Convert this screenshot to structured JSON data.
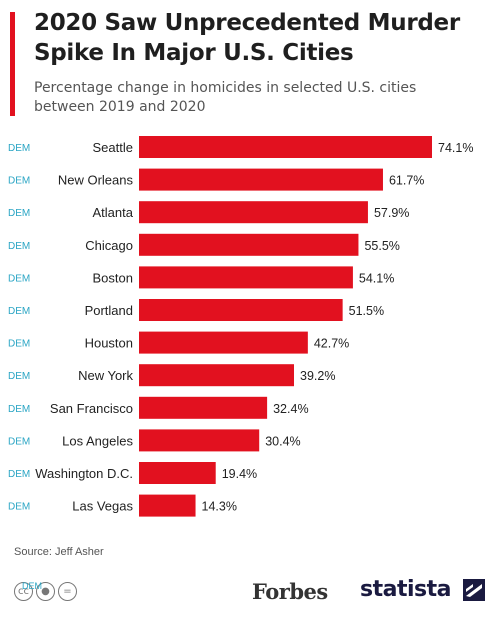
{
  "header": {
    "title": "2020 Saw Unprecedented Murder Spike In Major U.S. Cities",
    "subtitle": "Percentage change in homicides in selected U.S. cities between 2019 and 2020"
  },
  "chart_data": {
    "type": "bar",
    "orientation": "horizontal",
    "categories": [
      "Seattle",
      "New Orleans",
      "Atlanta",
      "Chicago",
      "Boston",
      "Portland",
      "Houston",
      "New York",
      "San Francisco",
      "Los Angeles",
      "Washington D.C.",
      "Las Vegas"
    ],
    "values": [
      74.1,
      61.7,
      57.9,
      55.5,
      54.1,
      51.5,
      42.7,
      39.2,
      32.4,
      30.4,
      19.4,
      14.3
    ],
    "value_labels": [
      "74.1%",
      "61.7%",
      "57.9%",
      "55.5%",
      "54.1%",
      "51.5%",
      "42.7%",
      "39.2%",
      "32.4%",
      "30.4%",
      "19.4%",
      "14.3%"
    ],
    "party_labels": [
      "DEM",
      "DEM",
      "DEM",
      "DEM",
      "DEM",
      "DEM",
      "DEM",
      "DEM",
      "DEM",
      "DEM",
      "DEM",
      "DEM"
    ],
    "xlim": [
      0,
      74.1
    ],
    "grid": false,
    "bar_color": "#e2111f",
    "party_color": "#2aa5c4"
  },
  "footer": {
    "source": "Source: Jeff Asher",
    "brand_forbes": "Forbes",
    "brand_statista": "statista",
    "cc_overlay": "DEM",
    "cc_icons": [
      "cc-icon",
      "by-icon",
      "nd-icon"
    ]
  }
}
